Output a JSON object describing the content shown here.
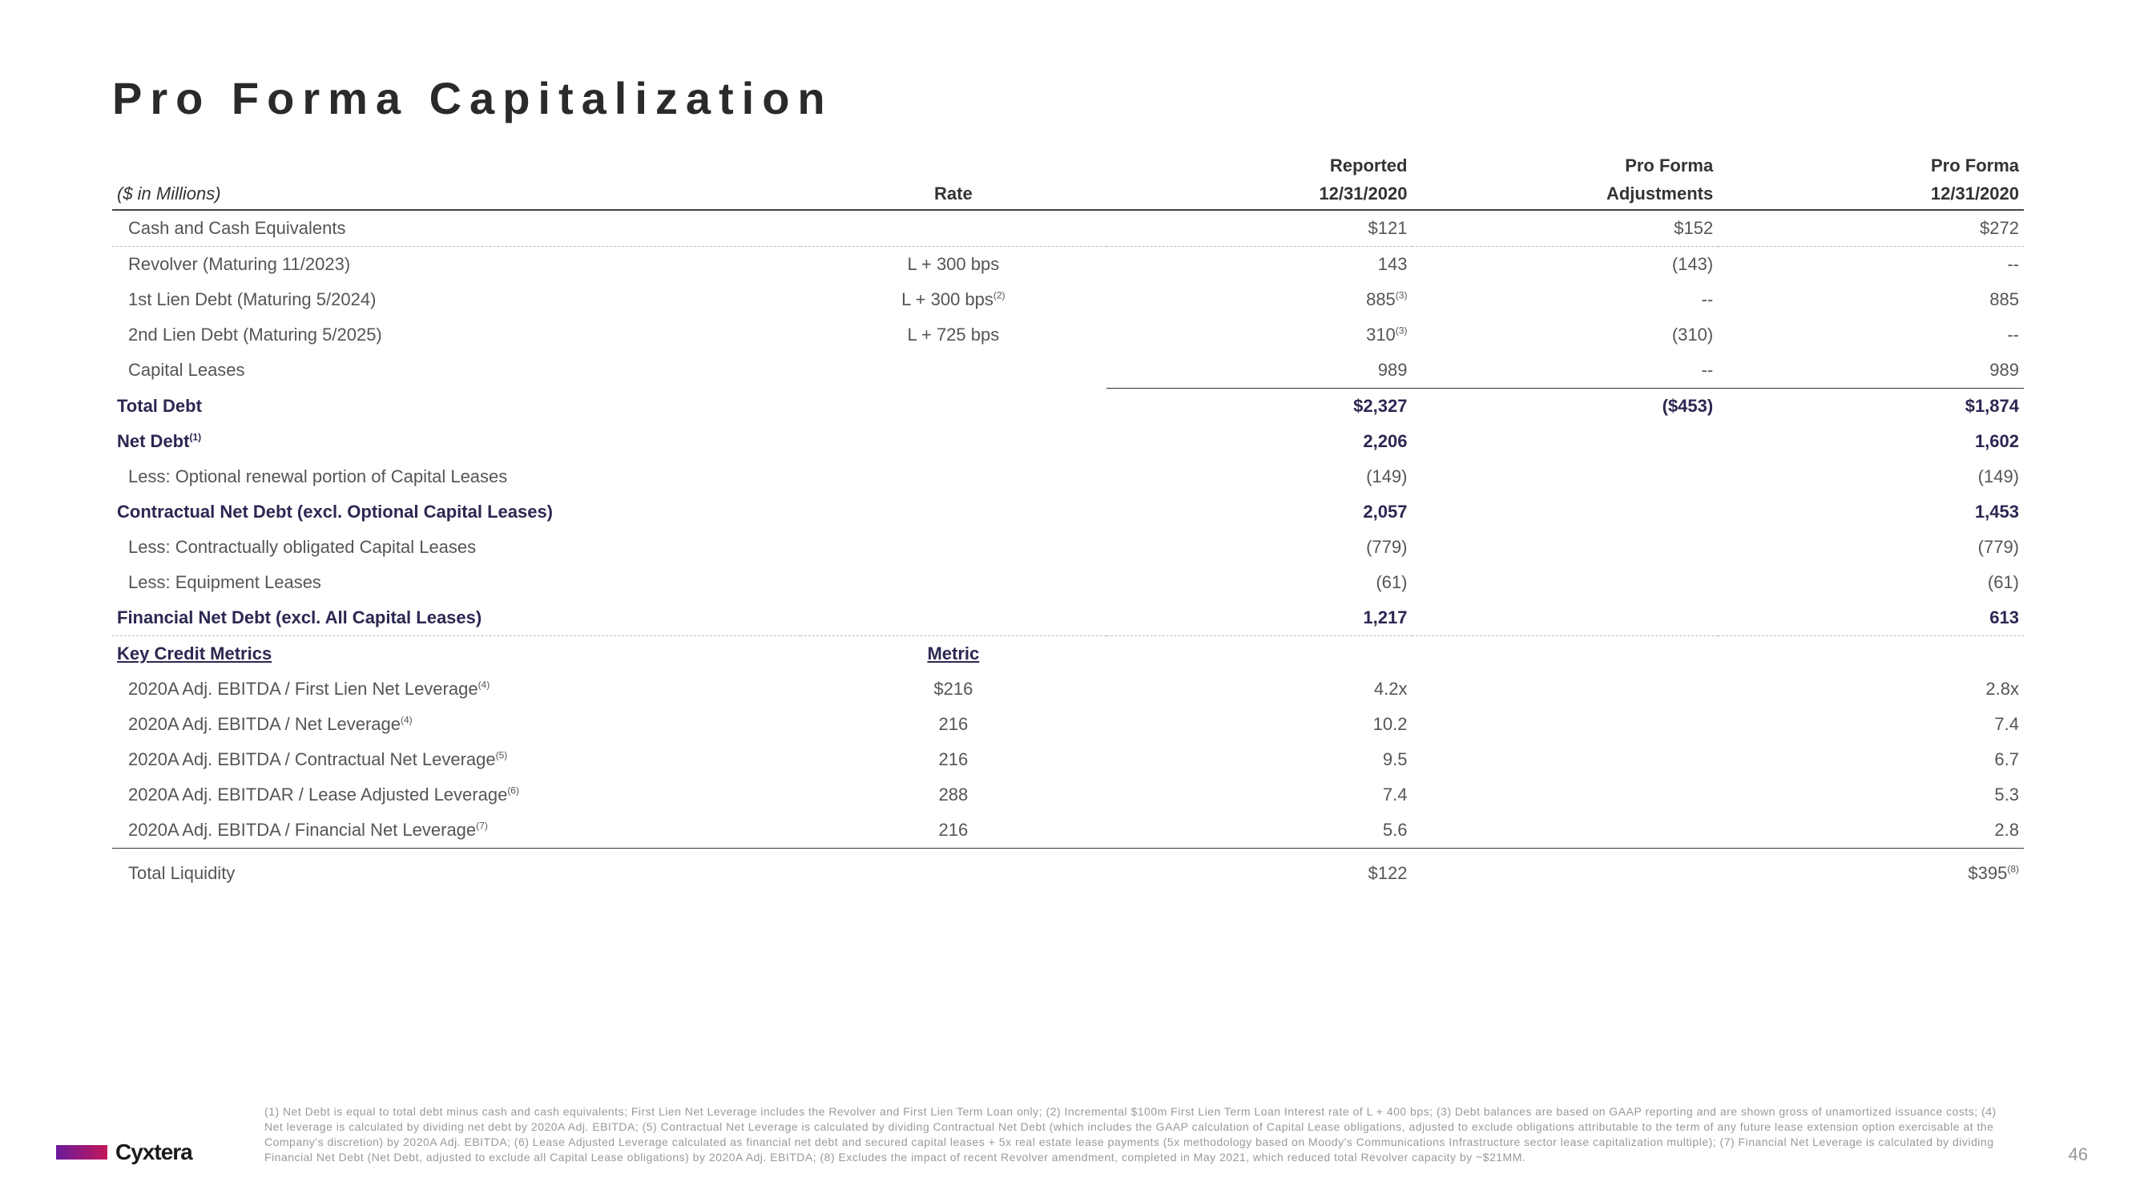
{
  "title": "Pro Forma Capitalization",
  "headers": {
    "units": "($ in Millions)",
    "rate": "Rate",
    "reported_top": "Reported",
    "reported_date": "12/31/2020",
    "adjustments_top": "Pro Forma",
    "adjustments_label": "Adjustments",
    "proforma_top": "Pro Forma",
    "proforma_date": "12/31/2020",
    "key_credit": "Key Credit Metrics",
    "metric": "Metric"
  },
  "rows": {
    "cash": {
      "label": "Cash and Cash Equivalents",
      "rate": "",
      "rep": "$121",
      "adj": "$152",
      "pf": "$272"
    },
    "revolver": {
      "label": "Revolver (Maturing 11/2023)",
      "rate": "L + 300 bps",
      "rep": "143",
      "adj": "(143)",
      "pf": "--"
    },
    "lien1": {
      "label": "1st Lien Debt (Maturing 5/2024)",
      "rate": "L + 300 bps",
      "rate_sup": "(2)",
      "rep": "885",
      "rep_sup": "(3)",
      "adj": "--",
      "pf": "885"
    },
    "lien2": {
      "label": "2nd Lien Debt (Maturing 5/2025)",
      "rate": "L + 725 bps",
      "rep": "310",
      "rep_sup": "(3)",
      "adj": "(310)",
      "pf": "--"
    },
    "capleases": {
      "label": "Capital Leases",
      "rate": "",
      "rep": "989",
      "adj": "--",
      "pf": "989"
    },
    "totaldebt": {
      "label": "Total Debt",
      "rep": "$2,327",
      "adj": "($453)",
      "pf": "$1,874"
    },
    "netdebt": {
      "label": "Net Debt",
      "label_sup": "(1)",
      "rep": "2,206",
      "pf": "1,602"
    },
    "lessopt": {
      "label": "Less: Optional renewal portion of Capital Leases",
      "rep": "(149)",
      "pf": "(149)"
    },
    "contractnd": {
      "label": "Contractual Net Debt (excl. Optional Capital Leases)",
      "rep": "2,057",
      "pf": "1,453"
    },
    "lessoblig": {
      "label": "Less: Contractually obligated Capital Leases",
      "rep": "(779)",
      "pf": "(779)"
    },
    "lessequip": {
      "label": "Less: Equipment Leases",
      "rep": "(61)",
      "pf": "(61)"
    },
    "finnd": {
      "label": "Financial Net Debt (excl. All Capital Leases)",
      "rep": "1,217",
      "pf": "613"
    },
    "m1": {
      "label": "2020A Adj. EBITDA / First Lien Net Leverage",
      "label_sup": "(4)",
      "metric": "$216",
      "rep": "4.2x",
      "pf": "2.8x"
    },
    "m2": {
      "label": "2020A Adj. EBITDA / Net Leverage",
      "label_sup": "(4)",
      "metric": "216",
      "rep": "10.2",
      "pf": "7.4"
    },
    "m3": {
      "label": "2020A Adj. EBITDA / Contractual Net Leverage",
      "label_sup": "(5)",
      "metric": "216",
      "rep": "9.5",
      "pf": "6.7"
    },
    "m4": {
      "label": "2020A Adj. EBITDAR / Lease Adjusted Leverage",
      "label_sup": "(6)",
      "metric": "288",
      "rep": "7.4",
      "pf": "5.3"
    },
    "m5": {
      "label": "2020A Adj. EBITDA / Financial Net Leverage",
      "label_sup": "(7)",
      "metric": "216",
      "rep": "5.6",
      "pf": "2.8"
    },
    "liq": {
      "label": "Total Liquidity",
      "rep": "$122",
      "pf": "$395",
      "pf_sup": "(8)"
    }
  },
  "footnotes": "(1) Net Debt is equal to total debt minus cash and cash equivalents; First Lien Net Leverage includes the Revolver and First Lien Term Loan only; (2) Incremental $100m First Lien Term Loan Interest rate of L + 400 bps; (3) Debt balances are based on GAAP reporting and are shown gross of unamortized issuance costs; (4) Net leverage is calculated by dividing net debt by 2020A Adj. EBITDA; (5) Contractual Net Leverage is calculated by dividing Contractual Net Debt (which includes the GAAP calculation of Capital Lease obligations, adjusted to exclude obligations attributable to the term of any future lease extension option exercisable at the Company's discretion) by 2020A Adj. EBITDA; (6) Lease Adjusted Leverage calculated as financial net debt and secured capital leases + 5x real estate lease payments (5x methodology based on Moody's Communications Infrastructure sector lease capitalization multiple); (7) Financial Net Leverage is calculated by dividing Financial Net Debt (Net Debt, adjusted to exclude all Capital Lease obligations) by 2020A Adj. EBITDA; (8) Excludes the impact of recent Revolver amendment, completed in May 2021, which reduced total Revolver capacity by ~$21MM.",
  "logo": "Cyxtera",
  "page_number": "46"
}
